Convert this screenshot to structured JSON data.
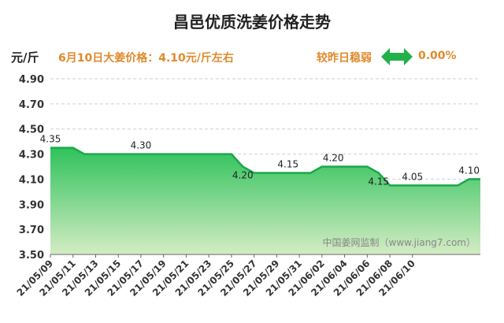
{
  "header": {
    "title": "昌邑优质洗姜价格走势",
    "unit": "元/斤",
    "price_info": "6月10日大姜价格：4.10元/斤左右",
    "compare_label": "较昨日稳弱",
    "compare_icon": "double-arrow-icon",
    "compare_value": "0.00%"
  },
  "watermark": "中国姜网监制（www.jiang7.com）",
  "colors": {
    "line": "#1aa84a",
    "fill_top": "#2fc25b",
    "fill_bottom": "#d4ecc4",
    "accent": "#e08a2c",
    "arrow": "#22b04a"
  },
  "chart_data": {
    "type": "area",
    "ylim": [
      3.5,
      4.9
    ],
    "yticks": [
      "3.50",
      "3.70",
      "3.90",
      "4.10",
      "4.30",
      "4.50",
      "4.70",
      "4.90"
    ],
    "xlabels": [
      "21/05/09",
      "21/05/11",
      "21/05/13",
      "21/05/15",
      "21/05/17",
      "21/05/19",
      "21/05/21",
      "21/05/23",
      "21/05/25",
      "21/05/27",
      "21/05/29",
      "21/05/31",
      "21/06/02",
      "21/06/04",
      "21/06/06",
      "21/06/08",
      "21/06/10"
    ],
    "values": [
      4.35,
      4.35,
      4.35,
      4.3,
      4.3,
      4.3,
      4.3,
      4.3,
      4.3,
      4.3,
      4.3,
      4.3,
      4.3,
      4.3,
      4.3,
      4.3,
      4.3,
      4.2,
      4.15,
      4.15,
      4.15,
      4.15,
      4.15,
      4.15,
      4.2,
      4.2,
      4.2,
      4.2,
      4.2,
      4.15,
      4.05,
      4.05,
      4.05,
      4.05,
      4.05,
      4.05,
      4.05,
      4.1,
      4.1
    ],
    "data_labels": [
      {
        "index": 0,
        "text": "4.35",
        "pos": "above"
      },
      {
        "index": 8,
        "text": "4.30",
        "pos": "above"
      },
      {
        "index": 17,
        "text": "4.20",
        "pos": "below"
      },
      {
        "index": 21,
        "text": "4.15",
        "pos": "above"
      },
      {
        "index": 25,
        "text": "4.20",
        "pos": "above"
      },
      {
        "index": 29,
        "text": "4.15",
        "pos": "below"
      },
      {
        "index": 32,
        "text": "4.05",
        "pos": "above"
      },
      {
        "index": 37,
        "text": "4.10",
        "pos": "above"
      }
    ],
    "grid": true
  }
}
